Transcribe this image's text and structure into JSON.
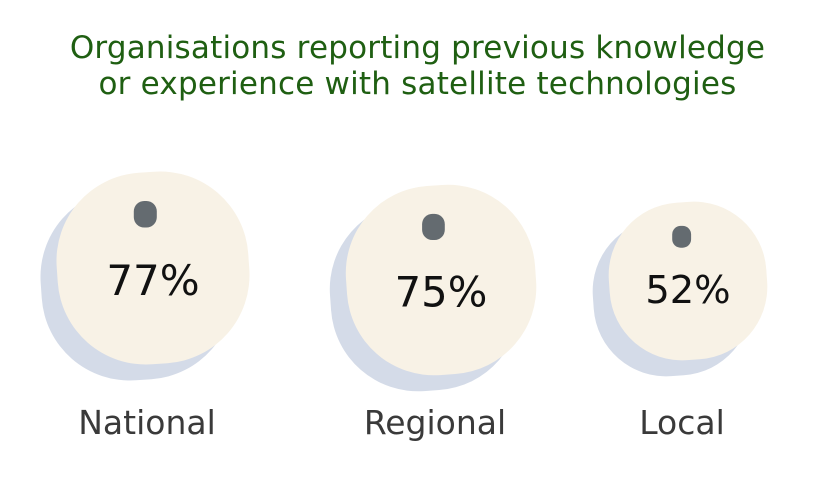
{
  "chart_data": {
    "type": "bubble",
    "title_lines": [
      "Organisations reporting previous knowledge",
      "or experience with satellite technologies"
    ],
    "categories": [
      "National",
      "Regional",
      "Local"
    ],
    "values": [
      77,
      75,
      52
    ],
    "value_labels": [
      "77%",
      "75%",
      "52%"
    ],
    "unit": "%"
  },
  "colors": {
    "title": "#1f5f12",
    "tag_fill": "#f8f2e6",
    "tag_shadow": "#d4dbe8",
    "tag_hole": "#646b70",
    "value_text": "#111111",
    "category_text": "#3a3a3a"
  }
}
